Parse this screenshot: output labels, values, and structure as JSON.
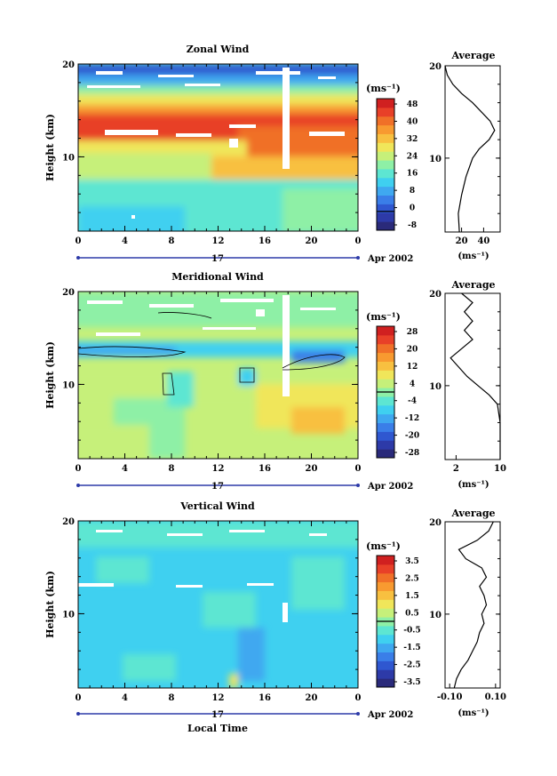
{
  "figure": {
    "xlabel": "Local Time",
    "date_label": "Apr 2002",
    "day_label": "17",
    "y_label": "Height (km)",
    "unit_label": "(ms⁻¹)"
  },
  "colorscale": [
    "#2a2a7a",
    "#2d3aa8",
    "#2f57d0",
    "#3a7ee8",
    "#3fa8f0",
    "#3fd0f0",
    "#5de6d2",
    "#8ef0a6",
    "#c6f07a",
    "#f0e65a",
    "#f8c040",
    "#f89a30",
    "#f07028",
    "#e84028",
    "#d02020"
  ],
  "chart_data": [
    {
      "type": "heatmap",
      "title": "Zonal Wind",
      "x_ticks": [
        "0",
        "4",
        "8",
        "12",
        "16",
        "20",
        "0"
      ],
      "y_ticks": [
        "10",
        "20"
      ],
      "xlim": [
        0,
        24
      ],
      "ylim": [
        2,
        20
      ],
      "colorbar": {
        "range": [
          -8,
          48
        ],
        "ticks": [
          "48",
          "40",
          "32",
          "24",
          "16",
          "8",
          "0",
          "-8"
        ]
      },
      "profile": {
        "title": "Average",
        "x_ticks": [
          "20",
          "40"
        ],
        "xlim": [
          5,
          55
        ],
        "ylim": [
          2,
          20
        ],
        "unit": "(ms⁻¹)",
        "values": [
          [
            18,
            2
          ],
          [
            17,
            4
          ],
          [
            20,
            6
          ],
          [
            24,
            8
          ],
          [
            30,
            10
          ],
          [
            36,
            11
          ],
          [
            45,
            12
          ],
          [
            50,
            13
          ],
          [
            46,
            14
          ],
          [
            38,
            15
          ],
          [
            30,
            16
          ],
          [
            20,
            17
          ],
          [
            12,
            18
          ],
          [
            7,
            19
          ],
          [
            5,
            20
          ]
        ]
      }
    },
    {
      "type": "heatmap",
      "title": "Meridional Wind",
      "x_ticks": [
        "0",
        "4",
        "8",
        "12",
        "16",
        "20",
        "0"
      ],
      "y_ticks": [
        "10",
        "20"
      ],
      "xlim": [
        0,
        24
      ],
      "ylim": [
        2,
        20
      ],
      "colorbar": {
        "range": [
          -28,
          28
        ],
        "ticks": [
          "28",
          "20",
          "12",
          "4",
          "-4",
          "-12",
          "-20",
          "-28"
        ]
      },
      "profile": {
        "title": "Average",
        "x_ticks": [
          "2",
          "10"
        ],
        "xlim": [
          0,
          10
        ],
        "ylim": [
          2,
          20
        ],
        "unit": "(ms⁻¹)",
        "values": [
          [
            10,
            2
          ],
          [
            10,
            4
          ],
          [
            10,
            6
          ],
          [
            9.5,
            8
          ],
          [
            8,
            9
          ],
          [
            6,
            10
          ],
          [
            4,
            11
          ],
          [
            2.5,
            12
          ],
          [
            1,
            13
          ],
          [
            3,
            14
          ],
          [
            5,
            15
          ],
          [
            3.5,
            16
          ],
          [
            5,
            17
          ],
          [
            3.5,
            18
          ],
          [
            5,
            19
          ],
          [
            3,
            20
          ]
        ]
      }
    },
    {
      "type": "heatmap",
      "title": "Vertical Wind",
      "x_ticks": [
        "0",
        "4",
        "8",
        "12",
        "16",
        "20",
        "0"
      ],
      "y_ticks": [
        "10",
        "20"
      ],
      "xlim": [
        0,
        24
      ],
      "ylim": [
        2,
        20
      ],
      "colorbar": {
        "range": [
          -3.5,
          3.5
        ],
        "ticks": [
          "3.5",
          "2.5",
          "1.5",
          "0.5",
          "-0.5",
          "-1.5",
          "-2.5",
          "-3.5"
        ]
      },
      "profile": {
        "title": "Average",
        "x_ticks": [
          "-0.10",
          "0.10"
        ],
        "xlim": [
          -0.12,
          0.12
        ],
        "ylim": [
          2,
          20
        ],
        "unit": "(ms⁻¹)",
        "values": [
          [
            -0.08,
            2
          ],
          [
            -0.07,
            3
          ],
          [
            -0.05,
            4
          ],
          [
            -0.02,
            5
          ],
          [
            0.0,
            6
          ],
          [
            0.02,
            7
          ],
          [
            0.03,
            8
          ],
          [
            0.05,
            9
          ],
          [
            0.04,
            10
          ],
          [
            0.06,
            11
          ],
          [
            0.05,
            12
          ],
          [
            0.03,
            13
          ],
          [
            0.06,
            14
          ],
          [
            0.04,
            15
          ],
          [
            -0.03,
            16
          ],
          [
            -0.06,
            17
          ],
          [
            0.02,
            18
          ],
          [
            0.07,
            19
          ],
          [
            0.09,
            20
          ]
        ]
      }
    }
  ]
}
